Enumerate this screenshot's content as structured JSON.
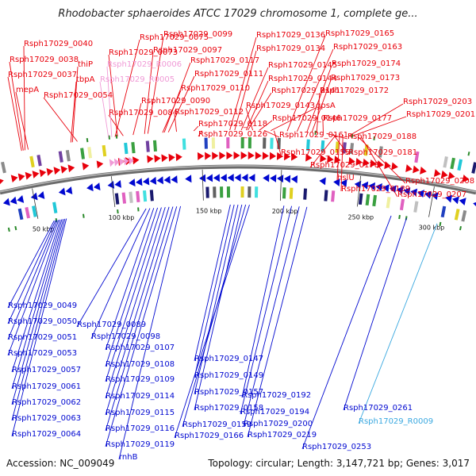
{
  "title": "Rhodobacter sphaeroides ATCC 17029 chromosome 1, complete ge...",
  "footer": {
    "accession": "Accession: NC_009049",
    "summary": "Topology: circular; Length: 3,147,721 bp; Genes: 3,017"
  },
  "colors": {
    "forward": "#e8000b",
    "reverse": "#0008d0",
    "rna_pink": "#f09ad6",
    "rna_cyan": "#3aa8e0",
    "backbone": "#808080"
  },
  "ticks": [
    "50 kbp",
    "100 kbp",
    "150 kbp",
    "200 kbp",
    "250 kbp",
    "300 kbp"
  ],
  "forward_labels": [
    "Rsph17029_0040",
    "Rsph17029_0038",
    "Rsph17029_0037",
    "mepA",
    "thiP",
    "tbpA",
    "Rsph17029_0054",
    "Rsph17029_0075",
    "Rsph17029_0073",
    "Rsph17029_0099",
    "Rsph17029_0097",
    "Rsph17029_0090",
    "Rsph17029_0084",
    "Rsph17029_0117",
    "Rsph17029_0111",
    "Rsph17029_0110",
    "Rsph17029_0112",
    "Rsph17029_0118",
    "Rsph17029_0126",
    "Rsph17029_0136",
    "Rsph17029_0134",
    "Rsph17029_0145",
    "Rsph17029_0144",
    "Rsph17029_0141",
    "Rsph17029_0143",
    "Rsph17029_0146",
    "gpsA",
    "Rsph17029_0161",
    "Rsph17029_0155",
    "Rsph17029_0165",
    "Rsph17029_0163",
    "Rsph17029_0174",
    "Rsph17029_0173",
    "Rsph17029_0172",
    "Rsph17029_0177",
    "Rsph17029_0188",
    "Rsph17029_0181",
    "Rsph17029_0178",
    "hslU",
    "Rsph17029_0189",
    "Rsph17029_0203",
    "Rsph17029_0201",
    "Rsph17029_0208",
    "Rsph17029_0207"
  ],
  "rna_labels": [
    "Rsph17029_R0006",
    "Rsph17029_R0005",
    "Rsph17029_R0009"
  ],
  "reverse_labels": [
    "Rsph17029_0049",
    "Rsph17029_0050",
    "Rsph17029_0051",
    "Rsph17029_0053",
    "Rsph17029_0057",
    "Rsph17029_0061",
    "Rsph17029_0062",
    "Rsph17029_0063",
    "Rsph17029_0064",
    "Rsph17029_0089",
    "Rsph17029_0098",
    "Rsph17029_0107",
    "Rsph17029_0108",
    "Rsph17029_0109",
    "Rsph17029_0114",
    "Rsph17029_0115",
    "Rsph17029_0116",
    "Rsph17029_0119",
    "rnhB",
    "Rsph17029_0147",
    "Rsph17029_0149",
    "Rsph17029_0157",
    "Rsph17029_0158",
    "Rsph17029_0159",
    "Rsph17029_0166",
    "Rsph17029_0192",
    "Rsph17029_0194",
    "Rsph17029_0200",
    "Rsph17029_0219",
    "Rsph17029_0253",
    "Rsph17029_0261"
  ]
}
